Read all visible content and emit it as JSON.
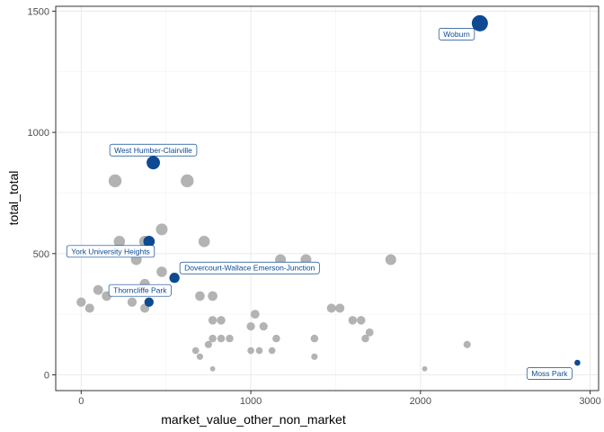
{
  "chart_data": {
    "type": "scatter",
    "title": "",
    "xlabel": "market_value_other_non_market",
    "ylabel": "total_total",
    "xlim": [
      -150,
      3050
    ],
    "ylim": [
      -65,
      1520
    ],
    "x_ticks": [
      0,
      1000,
      2000,
      3000
    ],
    "y_ticks": [
      0,
      500,
      1000,
      1500
    ],
    "grid": true,
    "legend": "none",
    "colors": {
      "grey_points": "#b3b3b3",
      "highlight": "#0d4a91",
      "label_border": "#0d4a91",
      "label_text": "#0d4a91"
    },
    "series": [
      {
        "kind": "background",
        "points": [
          {
            "x": 0,
            "y": 300
          },
          {
            "x": 50,
            "y": 275
          },
          {
            "x": 100,
            "y": 350
          },
          {
            "x": 150,
            "y": 325
          },
          {
            "x": 200,
            "y": 800
          },
          {
            "x": 225,
            "y": 550
          },
          {
            "x": 300,
            "y": 300
          },
          {
            "x": 325,
            "y": 475
          },
          {
            "x": 375,
            "y": 550
          },
          {
            "x": 375,
            "y": 375
          },
          {
            "x": 375,
            "y": 275
          },
          {
            "x": 475,
            "y": 600
          },
          {
            "x": 475,
            "y": 425
          },
          {
            "x": 625,
            "y": 800
          },
          {
            "x": 700,
            "y": 325
          },
          {
            "x": 725,
            "y": 550
          },
          {
            "x": 775,
            "y": 325
          },
          {
            "x": 775,
            "y": 225
          },
          {
            "x": 775,
            "y": 150
          },
          {
            "x": 825,
            "y": 225
          },
          {
            "x": 825,
            "y": 150
          },
          {
            "x": 875,
            "y": 150
          },
          {
            "x": 750,
            "y": 125
          },
          {
            "x": 675,
            "y": 100
          },
          {
            "x": 700,
            "y": 75
          },
          {
            "x": 775,
            "y": 25
          },
          {
            "x": 1000,
            "y": 200
          },
          {
            "x": 1025,
            "y": 250
          },
          {
            "x": 1075,
            "y": 200
          },
          {
            "x": 1000,
            "y": 100
          },
          {
            "x": 1050,
            "y": 100
          },
          {
            "x": 1125,
            "y": 100
          },
          {
            "x": 1150,
            "y": 150
          },
          {
            "x": 1175,
            "y": 475
          },
          {
            "x": 1325,
            "y": 475
          },
          {
            "x": 1375,
            "y": 150
          },
          {
            "x": 1375,
            "y": 75
          },
          {
            "x": 1475,
            "y": 275
          },
          {
            "x": 1525,
            "y": 275
          },
          {
            "x": 1600,
            "y": 225
          },
          {
            "x": 1650,
            "y": 225
          },
          {
            "x": 1675,
            "y": 150
          },
          {
            "x": 1700,
            "y": 175
          },
          {
            "x": 1825,
            "y": 475
          },
          {
            "x": 2025,
            "y": 25
          },
          {
            "x": 2275,
            "y": 125
          }
        ]
      },
      {
        "kind": "highlighted",
        "points": [
          {
            "label": "Woburn",
            "x": 2350,
            "y": 1450
          },
          {
            "label": "West Humber-Clairville",
            "x": 425,
            "y": 875
          },
          {
            "label": "York University Heights",
            "x": 400,
            "y": 550
          },
          {
            "label": "Dovercourt-Wallace Emerson-Junction",
            "x": 550,
            "y": 400
          },
          {
            "label": "Thorncliffe Park",
            "x": 400,
            "y": 300
          },
          {
            "label": "Moss Park",
            "x": 2925,
            "y": 50
          }
        ]
      }
    ]
  }
}
